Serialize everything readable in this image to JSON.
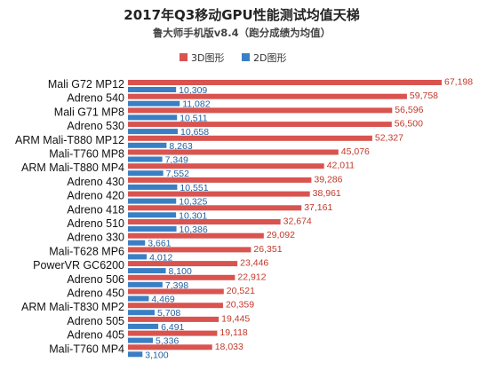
{
  "chart_data": {
    "type": "bar",
    "orientation": "horizontal",
    "title": "2017年Q3移动GPU性能测试均值天梯",
    "subtitle": "鲁大师手机版v8.4（跑分成绩为均值）",
    "legend_position": "top-center",
    "grid": false,
    "xlim": [
      0,
      70000
    ],
    "categories": [
      "Mali G72 MP12",
      "Adreno 540",
      "Mali G71 MP8",
      "Adreno 530",
      "ARM Mali-T880 MP12",
      "Mali-T760 MP8",
      "ARM Mali-T880 MP4",
      "Adreno 430",
      "Adreno 420",
      "Adreno 418",
      "Adreno 510",
      "Adreno 330",
      "Mali-T628 MP6",
      "PowerVR GC6200",
      "Adreno 506",
      "Adreno 450",
      "ARM Mali-T830 MP2",
      "Adreno 505",
      "Adreno 405",
      "Mali-T760 MP4"
    ],
    "series": [
      {
        "name": "3D图形",
        "color": "#d9534f",
        "values": [
          67198,
          59758,
          56596,
          56500,
          52327,
          45076,
          42011,
          39286,
          38961,
          37161,
          32674,
          29092,
          26351,
          23446,
          22912,
          20521,
          20359,
          19445,
          19118,
          18033
        ],
        "labels": [
          "67,198",
          "59,758",
          "56,596",
          "56,500",
          "52,327",
          "45,076",
          "42,011",
          "39,286",
          "38,961",
          "37,161",
          "32,674",
          "29,092",
          "26,351",
          "23,446",
          "22,912",
          "20,521",
          "20,359",
          "19,445",
          "19,118",
          "18,033"
        ]
      },
      {
        "name": "2D图形",
        "color": "#3a7fc4",
        "values": [
          10309,
          11082,
          10511,
          10658,
          8263,
          7349,
          7552,
          10551,
          10325,
          10301,
          10386,
          3661,
          4012,
          8100,
          7398,
          4469,
          5708,
          6491,
          5336,
          3100
        ],
        "labels": [
          "10,309",
          "11,082",
          "10,511",
          "10,658",
          "8,263",
          "7,349",
          "7,552",
          "10,551",
          "10,325",
          "10,301",
          "10,386",
          "3,661",
          "4,012",
          "8,100",
          "7,398",
          "4,469",
          "5,708",
          "6,491",
          "5,336",
          "3,100"
        ]
      }
    ]
  }
}
